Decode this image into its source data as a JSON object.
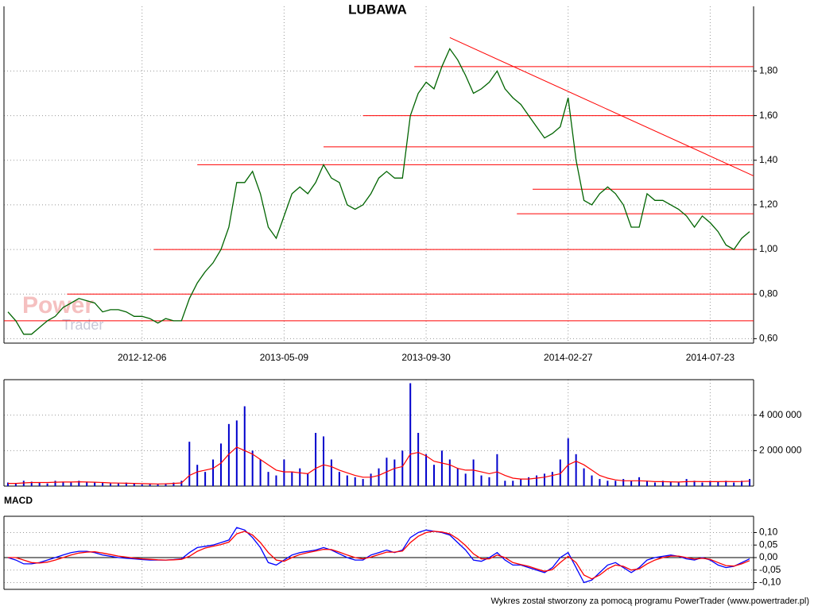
{
  "chart_data": [
    {
      "type": "line",
      "title": "LUBAWA",
      "watermark": [
        "Power",
        "Trader"
      ],
      "categories": [
        null,
        null,
        null,
        null,
        null,
        null,
        null,
        null,
        null,
        null,
        null,
        null,
        null,
        null,
        null,
        null,
        null,
        "2012-12-06",
        null,
        null,
        null,
        null,
        null,
        null,
        null,
        null,
        null,
        null,
        null,
        null,
        null,
        null,
        null,
        null,
        null,
        "2013-05-09",
        null,
        null,
        null,
        null,
        null,
        null,
        null,
        null,
        null,
        null,
        null,
        null,
        null,
        null,
        null,
        null,
        null,
        "2013-09-30",
        null,
        null,
        null,
        null,
        null,
        null,
        null,
        null,
        null,
        null,
        null,
        null,
        null,
        null,
        null,
        null,
        null,
        "2014-02-27",
        null,
        null,
        null,
        null,
        null,
        null,
        null,
        null,
        null,
        null,
        null,
        null,
        null,
        null,
        null,
        null,
        null,
        "2014-07-23",
        null,
        null,
        null,
        null,
        null
      ],
      "values": [
        0.72,
        0.68,
        0.62,
        0.62,
        0.65,
        0.68,
        0.7,
        0.74,
        0.76,
        0.78,
        0.77,
        0.76,
        0.72,
        0.73,
        0.73,
        0.72,
        0.7,
        0.7,
        0.69,
        0.67,
        0.69,
        0.68,
        0.68,
        0.78,
        0.85,
        0.9,
        0.94,
        1.0,
        1.1,
        1.3,
        1.3,
        1.35,
        1.25,
        1.1,
        1.05,
        1.15,
        1.25,
        1.28,
        1.25,
        1.3,
        1.38,
        1.32,
        1.3,
        1.2,
        1.18,
        1.2,
        1.25,
        1.32,
        1.35,
        1.32,
        1.32,
        1.6,
        1.7,
        1.75,
        1.72,
        1.82,
        1.9,
        1.85,
        1.78,
        1.7,
        1.72,
        1.75,
        1.8,
        1.72,
        1.68,
        1.65,
        1.6,
        1.55,
        1.5,
        1.52,
        1.55,
        1.68,
        1.4,
        1.22,
        1.2,
        1.25,
        1.28,
        1.25,
        1.2,
        1.1,
        1.1,
        1.25,
        1.22,
        1.22,
        1.2,
        1.18,
        1.15,
        1.1,
        1.15,
        1.12,
        1.08,
        1.02,
        1.0,
        1.05,
        1.08
      ],
      "color": "#006400",
      "ylim": [
        0.58,
        2.09
      ],
      "yticks": [
        {
          "value": 0.6,
          "label": "0,60"
        },
        {
          "value": 0.8,
          "label": "0,80"
        },
        {
          "value": 1.0,
          "label": "1,00"
        },
        {
          "value": 1.2,
          "label": "1,20"
        },
        {
          "value": 1.4,
          "label": "1,40"
        },
        {
          "value": 1.6,
          "label": "1,60"
        },
        {
          "value": 1.8,
          "label": "1,80"
        }
      ],
      "grid": true,
      "hlines": [
        {
          "value": 0.68,
          "start": 0
        },
        {
          "value": 0.8,
          "start": 7.5
        },
        {
          "value": 1.0,
          "start": 18.5
        },
        {
          "value": 1.16,
          "start": 64.5
        },
        {
          "value": 1.27,
          "start": 66.5
        },
        {
          "value": 1.38,
          "start": 24
        },
        {
          "value": 1.46,
          "start": 40
        },
        {
          "value": 1.6,
          "start": 45
        },
        {
          "value": 1.82,
          "start": 51.5
        }
      ],
      "trendline": {
        "x": [
          56,
          94.5
        ],
        "y": [
          1.95,
          1.33
        ]
      },
      "line_color": "#ff0000"
    },
    {
      "type": "bar",
      "series": [
        {
          "type": "bar",
          "color": "#0000cc",
          "values": [
            200000,
            150000,
            300000,
            250000,
            200000,
            150000,
            300000,
            250000,
            200000,
            300000,
            250000,
            200000,
            200000,
            150000,
            150000,
            200000,
            150000,
            100000,
            150000,
            100000,
            150000,
            200000,
            300000,
            2500000,
            1200000,
            800000,
            1500000,
            2400000,
            3500000,
            3700000,
            4500000,
            2000000,
            1500000,
            800000,
            600000,
            1500000,
            800000,
            1000000,
            700000,
            3000000,
            2800000,
            1500000,
            800000,
            600000,
            500000,
            400000,
            700000,
            1000000,
            1600000,
            1500000,
            2000000,
            5800000,
            3000000,
            1800000,
            1200000,
            2000000,
            1500000,
            1000000,
            700000,
            1500000,
            600000,
            500000,
            1800000,
            300000,
            300000,
            400000,
            500000,
            600000,
            700000,
            800000,
            1500000,
            2700000,
            1800000,
            1000000,
            600000,
            400000,
            300000,
            300000,
            400000,
            300000,
            500000,
            300000,
            200000,
            300000,
            250000,
            200000,
            400000,
            300000,
            200000,
            300000,
            250000,
            300000,
            200000,
            300000,
            400000
          ]
        },
        {
          "type": "line",
          "color": "#ff0000",
          "values": [
            150000,
            150000,
            180000,
            200000,
            200000,
            200000,
            220000,
            230000,
            230000,
            240000,
            230000,
            220000,
            200000,
            180000,
            170000,
            160000,
            150000,
            140000,
            130000,
            120000,
            130000,
            150000,
            180000,
            600000,
            800000,
            900000,
            1000000,
            1300000,
            1800000,
            2200000,
            2000000,
            1800000,
            1500000,
            1200000,
            900000,
            800000,
            800000,
            750000,
            700000,
            1000000,
            1200000,
            1100000,
            900000,
            750000,
            600000,
            500000,
            500000,
            600000,
            800000,
            1000000,
            1100000,
            1800000,
            1900000,
            1700000,
            1400000,
            1300000,
            1200000,
            1000000,
            900000,
            900000,
            800000,
            700000,
            800000,
            600000,
            450000,
            400000,
            400000,
            450000,
            500000,
            600000,
            700000,
            1200000,
            1400000,
            1200000,
            900000,
            600000,
            450000,
            350000,
            300000,
            300000,
            300000,
            280000,
            250000,
            250000,
            240000,
            230000,
            250000,
            260000,
            250000,
            250000,
            250000,
            260000,
            250000,
            260000,
            280000
          ]
        }
      ],
      "ylim": [
        0,
        6000000
      ],
      "yticks": [
        {
          "value": 2000000,
          "label": "2 000 000"
        },
        {
          "value": 4000000,
          "label": "4 000 000"
        }
      ],
      "grid": true
    },
    {
      "type": "line",
      "title": "MACD",
      "series": [
        {
          "color": "#0000ff",
          "values": [
            0,
            -0.01,
            -0.025,
            -0.025,
            -0.02,
            -0.01,
            0,
            0.01,
            0.02,
            0.025,
            0.025,
            0.02,
            0.01,
            0.005,
            0,
            -0.003,
            -0.005,
            -0.008,
            -0.01,
            -0.01,
            -0.01,
            -0.008,
            -0.005,
            0.02,
            0.04,
            0.045,
            0.05,
            0.06,
            0.07,
            0.12,
            0.11,
            0.08,
            0.04,
            -0.02,
            -0.03,
            -0.01,
            0.01,
            0.02,
            0.025,
            0.03,
            0.04,
            0.03,
            0.015,
            0,
            -0.01,
            -0.01,
            0.01,
            0.02,
            0.03,
            0.02,
            0.03,
            0.08,
            0.1,
            0.11,
            0.105,
            0.1,
            0.09,
            0.06,
            0.03,
            -0.01,
            -0.015,
            0,
            0.02,
            -0.01,
            -0.03,
            -0.03,
            -0.04,
            -0.05,
            -0.06,
            -0.04,
            0,
            0.02,
            -0.04,
            -0.1,
            -0.09,
            -0.06,
            -0.03,
            -0.02,
            -0.04,
            -0.06,
            -0.04,
            -0.01,
            0,
            0.005,
            0.01,
            0.005,
            -0.005,
            -0.01,
            0,
            -0.01,
            -0.03,
            -0.04,
            -0.035,
            -0.02,
            -0.005
          ]
        },
        {
          "color": "#ff0000",
          "values": [
            0,
            0,
            -0.01,
            -0.02,
            -0.022,
            -0.018,
            -0.01,
            0,
            0.01,
            0.018,
            0.022,
            0.023,
            0.018,
            0.012,
            0.006,
            0.002,
            -0.002,
            -0.005,
            -0.007,
            -0.009,
            -0.01,
            -0.009,
            -0.007,
            0.005,
            0.025,
            0.038,
            0.045,
            0.052,
            0.062,
            0.095,
            0.105,
            0.09,
            0.06,
            0.02,
            -0.01,
            -0.015,
            0,
            0.012,
            0.02,
            0.026,
            0.033,
            0.032,
            0.022,
            0.01,
            0,
            -0.005,
            0.002,
            0.012,
            0.022,
            0.022,
            0.026,
            0.06,
            0.085,
            0.1,
            0.105,
            0.102,
            0.095,
            0.075,
            0.048,
            0.015,
            -0.005,
            -0.005,
            0.01,
            0,
            -0.02,
            -0.028,
            -0.035,
            -0.045,
            -0.055,
            -0.048,
            -0.02,
            0.005,
            -0.02,
            -0.07,
            -0.085,
            -0.07,
            -0.045,
            -0.03,
            -0.035,
            -0.05,
            -0.045,
            -0.025,
            -0.01,
            0,
            0.006,
            0.006,
            0,
            -0.006,
            -0.003,
            -0.007,
            -0.02,
            -0.032,
            -0.034,
            -0.025,
            -0.012
          ]
        }
      ],
      "ylim": [
        -0.127,
        0.165
      ],
      "yticks": [
        {
          "value": -0.1,
          "label": "-0,10"
        },
        {
          "value": -0.05,
          "label": "-0,05"
        },
        {
          "value": 0,
          "label": "0,00"
        },
        {
          "value": 0.05,
          "label": "0,05"
        },
        {
          "value": 0.1,
          "label": "0,10"
        }
      ],
      "grid": true
    }
  ],
  "footer": "Wykres został stworzony za pomocą programu PowerTrader (www.powertrader.pl)"
}
